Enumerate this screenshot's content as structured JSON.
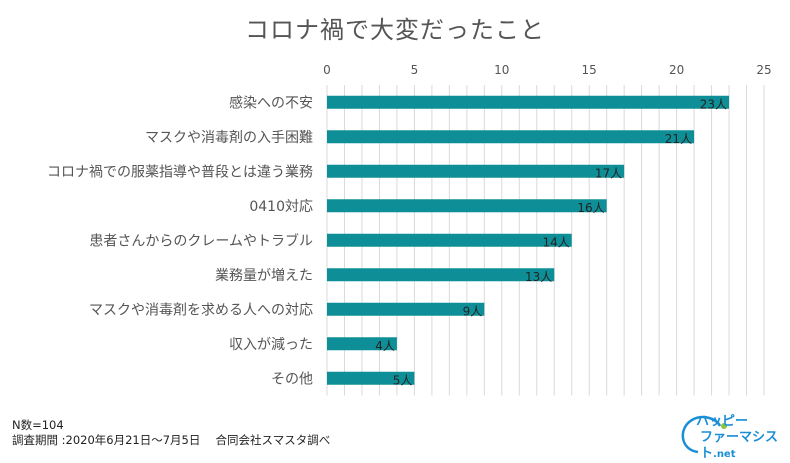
{
  "chart_data": {
    "type": "bar",
    "orientation": "horizontal",
    "title": "コロナ禍で大変だったこと",
    "categories": [
      "感染への不安",
      "マスクや消毒剤の入手困難",
      "コロナ禍での服薬指導や普段とは違う業務",
      "0410対応",
      "患者さんからのクレームやトラブル",
      "業務量が増えた",
      "マスクや消毒剤を求める人への対応",
      "収入が減った",
      "その他"
    ],
    "values": [
      23,
      21,
      17,
      16,
      14,
      13,
      9,
      4,
      5
    ],
    "data_labels": [
      "23人",
      "21人",
      "17人",
      "16人",
      "14人",
      "13人",
      "9人",
      "4人",
      "5人"
    ],
    "xlim": [
      0,
      25
    ],
    "xticks": [
      "0",
      "5",
      "10",
      "15",
      "20",
      "25"
    ],
    "grid": true,
    "bar_color": "#0e8f97"
  },
  "footer": {
    "line1": "N数=104",
    "line2": "調査期間 :2020年6月21日～7月5日　 合同会社スマスタ調べ"
  },
  "logo": {
    "line1": "ハッピー",
    "line2": "ファーマシスト",
    "suffix": ".net"
  }
}
